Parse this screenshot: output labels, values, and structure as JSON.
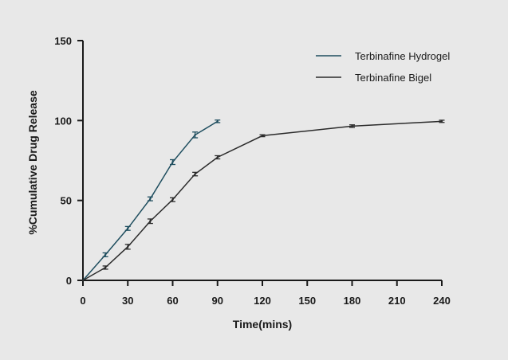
{
  "chart_data": {
    "type": "line",
    "xlabel": "Time(mins)",
    "ylabel": "%Cumulative Drug Release",
    "xlim": [
      0,
      240
    ],
    "ylim": [
      0,
      150
    ],
    "x_ticks": [
      0,
      30,
      60,
      90,
      120,
      150,
      180,
      210,
      240
    ],
    "y_ticks": [
      0,
      50,
      100,
      150
    ],
    "grid": false,
    "legend_position": "top-right",
    "series": [
      {
        "name": "Terbinafine Hydrogel",
        "color": "#1f4e5f",
        "x": [
          0,
          15,
          30,
          45,
          60,
          75,
          90
        ],
        "y": [
          0,
          16,
          32.5,
          51,
          74,
          91,
          99.5
        ],
        "err": [
          0,
          1.2,
          1.2,
          1.2,
          1.5,
          1.8,
          0.8
        ]
      },
      {
        "name": "Terbinafine Bigel",
        "color": "#2b2b2b",
        "x": [
          0,
          15,
          30,
          45,
          60,
          75,
          90,
          120,
          180,
          240
        ],
        "y": [
          0,
          8,
          21,
          37,
          50.5,
          66.5,
          77,
          90.5,
          96.5,
          99.5
        ],
        "err": [
          0,
          1,
          1.5,
          1.4,
          1.2,
          1.1,
          1,
          0.6,
          0.8,
          0.7
        ]
      }
    ]
  }
}
